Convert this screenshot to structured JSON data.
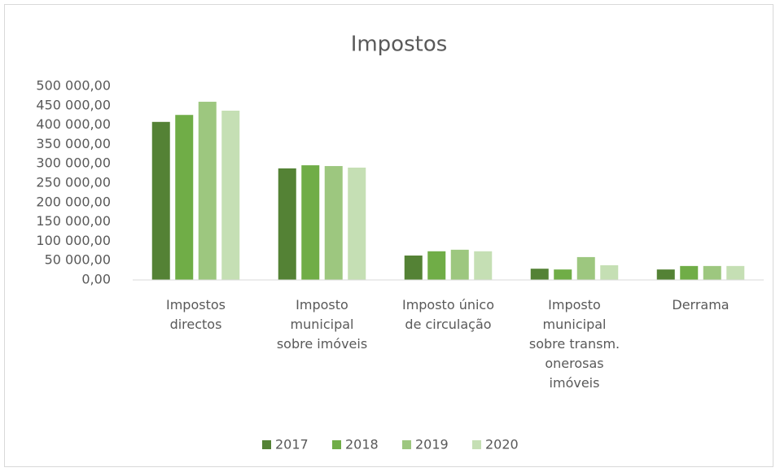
{
  "chart_data": {
    "type": "bar",
    "title": "Impostos",
    "categories": [
      "Impostos directos",
      "Imposto municipal sobre imóveis",
      "Imposto único de circulação",
      "Imposto municipal sobre transm. onerosas imóveis",
      "Derrama"
    ],
    "series": [
      {
        "name": "2017",
        "color": "#548235",
        "values": [
          408000,
          288000,
          63000,
          29000,
          27000
        ]
      },
      {
        "name": "2018",
        "color": "#70ad47",
        "values": [
          426000,
          296000,
          74000,
          27000,
          36000
        ]
      },
      {
        "name": "2019",
        "color": "#9dc77f",
        "values": [
          460000,
          294000,
          78000,
          59000,
          36000
        ]
      },
      {
        "name": "2020",
        "color": "#c5dfb4",
        "values": [
          437000,
          290000,
          74000,
          38000,
          36000
        ]
      }
    ],
    "ylim": [
      0,
      500000
    ],
    "yticks": [
      {
        "value": 0,
        "label": "0,00"
      },
      {
        "value": 50000,
        "label": "50 000,00"
      },
      {
        "value": 100000,
        "label": "100 000,00"
      },
      {
        "value": 150000,
        "label": "150 000,00"
      },
      {
        "value": 200000,
        "label": "200 000,00"
      },
      {
        "value": 250000,
        "label": "250 000,00"
      },
      {
        "value": 300000,
        "label": "300 000,00"
      },
      {
        "value": 350000,
        "label": "350 000,00"
      },
      {
        "value": 400000,
        "label": "400 000,00"
      },
      {
        "value": 450000,
        "label": "450 000,00"
      },
      {
        "value": 500000,
        "label": "500 000,00"
      }
    ],
    "grid": false,
    "legend": "bottom"
  }
}
